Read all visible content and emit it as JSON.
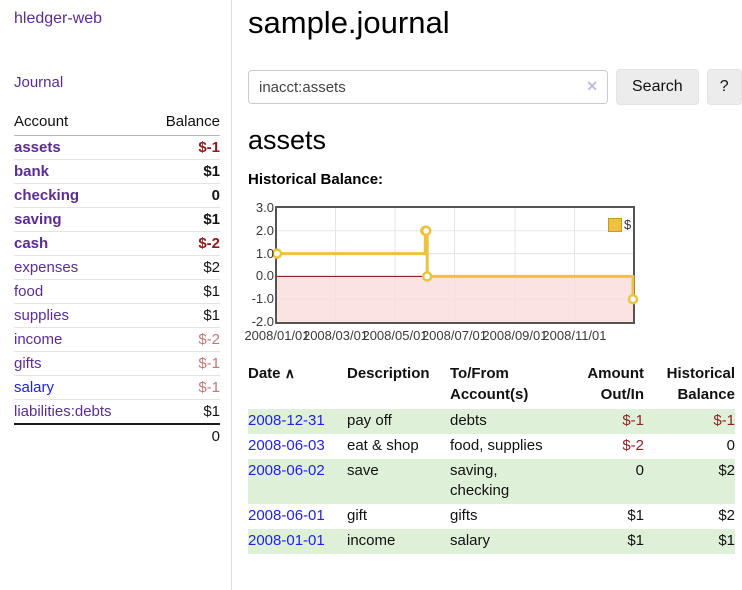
{
  "brand": "hledger-web",
  "colors": {
    "brand_purple": "#5c2d91",
    "link_blue": "#2222dd",
    "negative_strong": "#8b1a1a",
    "negative_table": "#8b2424",
    "negative_muted": "#c27878",
    "row_green": "#dff0d8",
    "button_gray": "#ececec",
    "chart_yellow": "#edc240",
    "chart_border": "#545454",
    "chart_grid": "#e5e5e5",
    "chart_zero_line": "#8b0000",
    "chart_negative_fill": "#fbdcdc"
  },
  "sidebar": {
    "journal_link": "Journal",
    "accounts": {
      "col_account": "Account",
      "col_balance": "Balance",
      "rows": [
        {
          "name": "assets",
          "balance": "$-1",
          "depth": 0,
          "strong": true,
          "negative": true
        },
        {
          "name": "bank",
          "balance": "$1",
          "depth": 1,
          "strong": true,
          "negative": false
        },
        {
          "name": "checking",
          "balance": "0",
          "depth": 2,
          "strong": true,
          "negative": false
        },
        {
          "name": "saving",
          "balance": "$1",
          "depth": 2,
          "strong": true,
          "negative": false
        },
        {
          "name": "cash",
          "balance": "$-2",
          "depth": 1,
          "strong": true,
          "negative": true
        },
        {
          "name": "expenses",
          "balance": "$2",
          "depth": 0,
          "strong": false,
          "negative": false
        },
        {
          "name": "food",
          "balance": "$1",
          "depth": 1,
          "strong": false,
          "negative": false
        },
        {
          "name": "supplies",
          "balance": "$1",
          "depth": 1,
          "strong": false,
          "negative": false
        },
        {
          "name": "income",
          "balance": "$-2",
          "depth": 0,
          "strong": false,
          "negative": true
        },
        {
          "name": "gifts",
          "balance": "$-1",
          "depth": 1,
          "strong": false,
          "negative": true
        },
        {
          "name": "salary",
          "balance": "$-1",
          "depth": 1,
          "strong": false,
          "negative": true,
          "blue_link": true
        },
        {
          "name": "liabilities:debts",
          "balance": "$1",
          "depth": 0,
          "strong": false,
          "negative": false
        }
      ],
      "total": "0"
    }
  },
  "main": {
    "title": "sample.journal",
    "search": {
      "value": "inacct:assets",
      "clear_icon": "✕",
      "search_button": "Search",
      "help_button": "?"
    },
    "account_heading": "assets",
    "chart_heading": "Historical Balance:",
    "register": {
      "headers": {
        "date": "Date",
        "sort_icon": "∧",
        "description": "Description",
        "tofrom_line1": "To/From",
        "tofrom_line2": "Account(s)",
        "amount_line1": "Amount",
        "amount_line2": "Out/In",
        "balance_line1": "Historical",
        "balance_line2": "Balance"
      },
      "rows": [
        {
          "date": "2008-12-31",
          "description": "pay off",
          "accounts": "debts",
          "amount": "$-1",
          "balance": "$-1",
          "amount_negative": true,
          "balance_negative": true
        },
        {
          "date": "2008-06-03",
          "description": "eat & shop",
          "accounts": "food, supplies",
          "amount": "$-2",
          "balance": "0",
          "amount_negative": true,
          "balance_negative": false
        },
        {
          "date": "2008-06-02",
          "description": "save",
          "accounts": "saving, checking",
          "amount": "0",
          "balance": "$2",
          "amount_negative": false,
          "balance_negative": false
        },
        {
          "date": "2008-06-01",
          "description": "gift",
          "accounts": "gifts",
          "amount": "$1",
          "balance": "$2",
          "amount_negative": false,
          "balance_negative": false
        },
        {
          "date": "2008-01-01",
          "description": "income",
          "accounts": "salary",
          "amount": "$1",
          "balance": "$1",
          "amount_negative": false,
          "balance_negative": false
        }
      ]
    }
  },
  "chart_data": {
    "type": "line",
    "title": "Historical Balance:",
    "step": true,
    "x_range": [
      "2008-01-01",
      "2008-12-31"
    ],
    "ylim": [
      -2,
      3
    ],
    "y_ticks": [
      "3.0",
      "2.0",
      "1.0",
      "0.0",
      "-1.0",
      "-2.0"
    ],
    "y_tick_values": [
      3,
      2,
      1,
      0,
      -1,
      -2
    ],
    "x_ticks": [
      "2008/01/01",
      "2008/03/01",
      "2008/05/01",
      "2008/07/01",
      "2008/09/01",
      "2008/11/01"
    ],
    "grid": true,
    "legend_position": "top-right",
    "series": [
      {
        "name": "$",
        "color": "#edc240",
        "points": [
          [
            "2008-01-01",
            1
          ],
          [
            "2008-06-01",
            2
          ],
          [
            "2008-06-02",
            2
          ],
          [
            "2008-06-03",
            0
          ],
          [
            "2008-12-31",
            -1
          ]
        ]
      }
    ],
    "negative_region_shaded": true
  }
}
